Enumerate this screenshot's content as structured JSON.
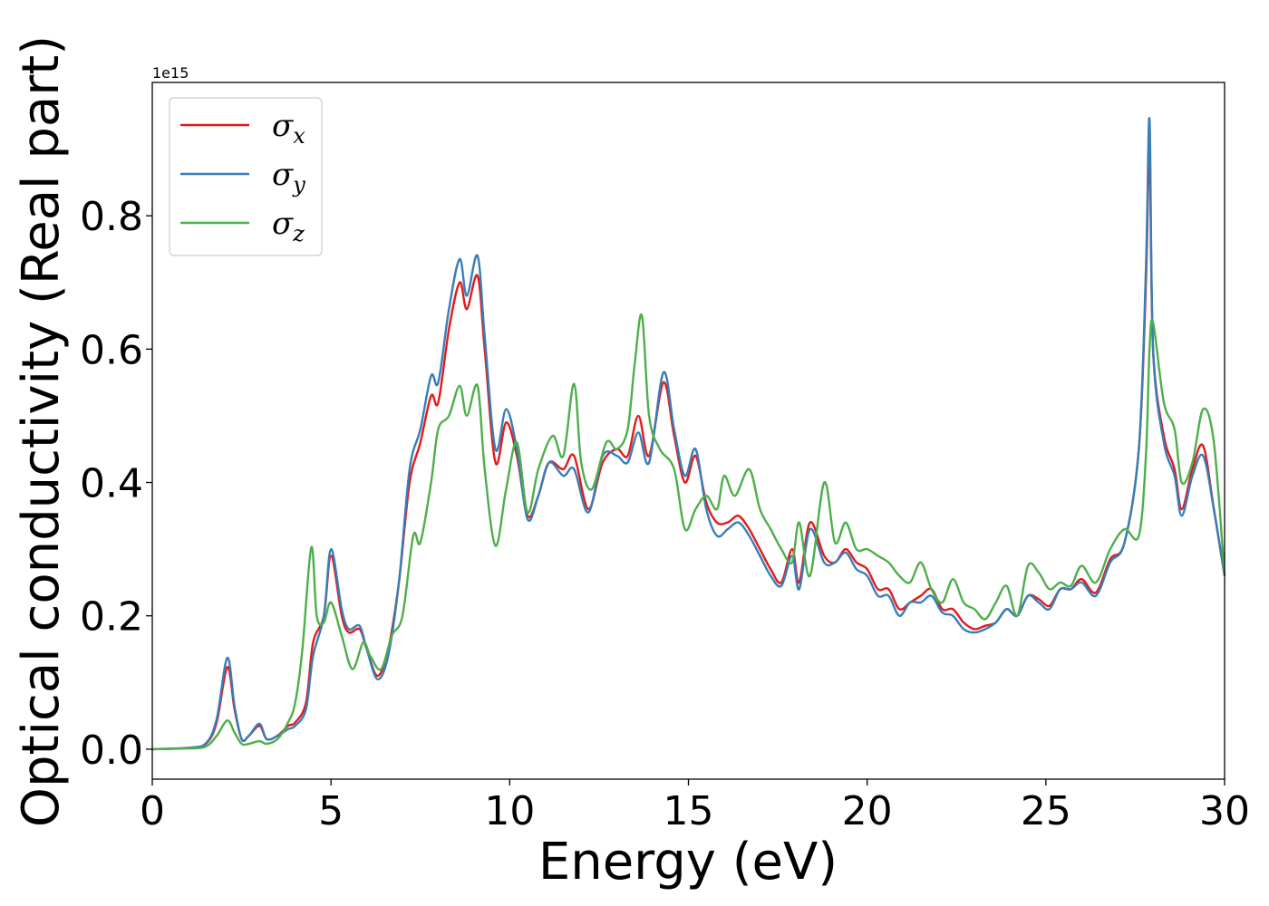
{
  "chart_data": {
    "type": "line",
    "xlabel": "Energy (eV)",
    "ylabel": "Optical conductivity (Real part)",
    "y_offset_label": "1e15",
    "xlim": [
      0,
      30
    ],
    "ylim": [
      -0.045,
      1.0
    ],
    "xticks": [
      0,
      5,
      10,
      15,
      20,
      25,
      30
    ],
    "xtick_labels": [
      "0",
      "5",
      "10",
      "15",
      "20",
      "25",
      "30"
    ],
    "yticks": [
      0.0,
      0.2,
      0.4,
      0.6,
      0.8
    ],
    "ytick_labels": [
      "0.0",
      "0.2",
      "0.4",
      "0.6",
      "0.8"
    ],
    "grid": false,
    "legend_position": "top-left",
    "series": [
      {
        "name": "σ_x",
        "label_main": "σ",
        "label_sub": "x",
        "color": "#e41a1c",
        "x": [
          0,
          1,
          1.5,
          1.8,
          2.1,
          2.3,
          2.5,
          2.7,
          3.0,
          3.2,
          3.5,
          3.8,
          4.0,
          4.3,
          4.5,
          4.8,
          5.0,
          5.3,
          5.5,
          5.8,
          6.0,
          6.3,
          6.6,
          6.9,
          7.2,
          7.5,
          7.8,
          8.0,
          8.3,
          8.6,
          8.8,
          9.1,
          9.3,
          9.6,
          9.9,
          10.2,
          10.5,
          10.8,
          11.1,
          11.5,
          11.8,
          12.2,
          12.6,
          13.0,
          13.3,
          13.6,
          13.9,
          14.3,
          14.6,
          14.9,
          15.2,
          15.5,
          15.8,
          16.1,
          16.4,
          16.7,
          17.0,
          17.3,
          17.6,
          17.9,
          18.1,
          18.4,
          18.8,
          19.1,
          19.4,
          19.7,
          20.0,
          20.3,
          20.6,
          20.9,
          21.2,
          21.5,
          21.8,
          22.1,
          22.4,
          22.7,
          23.0,
          23.3,
          23.6,
          23.9,
          24.2,
          24.5,
          24.8,
          25.1,
          25.4,
          25.7,
          26.0,
          26.4,
          26.8,
          27.2,
          27.6,
          27.8,
          27.9,
          28.0,
          28.3,
          28.6,
          28.8,
          29.1,
          29.4,
          29.7,
          30.0
        ],
        "y": [
          0,
          0.002,
          0.008,
          0.04,
          0.123,
          0.06,
          0.015,
          0.02,
          0.035,
          0.015,
          0.02,
          0.035,
          0.04,
          0.07,
          0.16,
          0.2,
          0.29,
          0.2,
          0.175,
          0.18,
          0.15,
          0.11,
          0.15,
          0.25,
          0.4,
          0.46,
          0.53,
          0.52,
          0.63,
          0.7,
          0.66,
          0.71,
          0.6,
          0.43,
          0.49,
          0.44,
          0.35,
          0.38,
          0.43,
          0.42,
          0.44,
          0.36,
          0.43,
          0.45,
          0.44,
          0.5,
          0.44,
          0.55,
          0.47,
          0.4,
          0.44,
          0.37,
          0.34,
          0.34,
          0.35,
          0.33,
          0.3,
          0.27,
          0.25,
          0.3,
          0.25,
          0.34,
          0.29,
          0.28,
          0.3,
          0.28,
          0.27,
          0.24,
          0.24,
          0.21,
          0.22,
          0.23,
          0.24,
          0.21,
          0.21,
          0.19,
          0.18,
          0.185,
          0.19,
          0.21,
          0.2,
          0.23,
          0.225,
          0.215,
          0.24,
          0.24,
          0.255,
          0.235,
          0.285,
          0.31,
          0.45,
          0.7,
          0.905,
          0.6,
          0.47,
          0.42,
          0.36,
          0.42,
          0.455,
          0.36,
          0.26
        ]
      },
      {
        "name": "σ_y",
        "label_main": "σ",
        "label_sub": "y",
        "color": "#377eb8",
        "x": [
          0,
          1,
          1.5,
          1.8,
          2.1,
          2.3,
          2.5,
          2.7,
          3.0,
          3.2,
          3.5,
          3.8,
          4.0,
          4.3,
          4.5,
          4.8,
          5.0,
          5.3,
          5.5,
          5.8,
          6.0,
          6.3,
          6.6,
          6.9,
          7.2,
          7.5,
          7.8,
          8.0,
          8.3,
          8.6,
          8.8,
          9.1,
          9.3,
          9.6,
          9.9,
          10.2,
          10.5,
          10.8,
          11.1,
          11.5,
          11.8,
          12.2,
          12.6,
          13.0,
          13.3,
          13.6,
          13.9,
          14.3,
          14.6,
          14.9,
          15.2,
          15.5,
          15.8,
          16.1,
          16.4,
          16.7,
          17.0,
          17.3,
          17.6,
          17.9,
          18.1,
          18.4,
          18.8,
          19.1,
          19.4,
          19.7,
          20.0,
          20.3,
          20.6,
          20.9,
          21.2,
          21.5,
          21.8,
          22.1,
          22.4,
          22.7,
          23.0,
          23.3,
          23.6,
          23.9,
          24.2,
          24.5,
          24.8,
          25.1,
          25.4,
          25.7,
          26.0,
          26.4,
          26.8,
          27.2,
          27.6,
          27.8,
          27.9,
          28.0,
          28.3,
          28.6,
          28.8,
          29.1,
          29.4,
          29.7,
          30.0
        ],
        "y": [
          0,
          0.002,
          0.009,
          0.045,
          0.137,
          0.065,
          0.015,
          0.02,
          0.038,
          0.015,
          0.02,
          0.03,
          0.035,
          0.06,
          0.14,
          0.2,
          0.3,
          0.21,
          0.18,
          0.185,
          0.15,
          0.105,
          0.14,
          0.25,
          0.42,
          0.48,
          0.56,
          0.55,
          0.66,
          0.735,
          0.68,
          0.74,
          0.62,
          0.45,
          0.51,
          0.45,
          0.345,
          0.38,
          0.43,
          0.41,
          0.42,
          0.355,
          0.44,
          0.44,
          0.43,
          0.475,
          0.43,
          0.565,
          0.48,
          0.41,
          0.45,
          0.36,
          0.32,
          0.33,
          0.34,
          0.32,
          0.29,
          0.26,
          0.245,
          0.29,
          0.24,
          0.33,
          0.28,
          0.28,
          0.295,
          0.27,
          0.26,
          0.23,
          0.23,
          0.2,
          0.22,
          0.22,
          0.23,
          0.205,
          0.2,
          0.18,
          0.175,
          0.18,
          0.19,
          0.21,
          0.2,
          0.23,
          0.22,
          0.21,
          0.24,
          0.24,
          0.25,
          0.23,
          0.28,
          0.31,
          0.45,
          0.72,
          0.945,
          0.6,
          0.46,
          0.41,
          0.35,
          0.41,
          0.44,
          0.36,
          0.26
        ]
      },
      {
        "name": "σ_z",
        "label_main": "σ",
        "label_sub": "z",
        "color": "#4daf4a",
        "x": [
          0,
          1,
          1.5,
          1.8,
          2.1,
          2.3,
          2.5,
          2.7,
          3.0,
          3.2,
          3.5,
          3.8,
          4.0,
          4.2,
          4.45,
          4.6,
          4.8,
          5.0,
          5.3,
          5.6,
          5.9,
          6.1,
          6.4,
          6.7,
          7.0,
          7.3,
          7.5,
          7.8,
          8.0,
          8.3,
          8.6,
          8.8,
          9.1,
          9.3,
          9.6,
          9.9,
          10.2,
          10.5,
          10.8,
          11.2,
          11.5,
          11.8,
          12.0,
          12.3,
          12.7,
          13.0,
          13.3,
          13.5,
          13.7,
          13.9,
          14.2,
          14.6,
          14.9,
          15.2,
          15.5,
          15.8,
          16.0,
          16.3,
          16.7,
          17.0,
          17.3,
          17.6,
          17.9,
          18.1,
          18.4,
          18.8,
          19.1,
          19.4,
          19.7,
          20.0,
          20.3,
          20.6,
          20.9,
          21.2,
          21.5,
          21.8,
          22.1,
          22.4,
          22.7,
          23.0,
          23.3,
          23.6,
          23.9,
          24.2,
          24.5,
          24.8,
          25.1,
          25.4,
          25.7,
          26.0,
          26.4,
          26.8,
          27.2,
          27.6,
          27.8,
          27.9,
          28.0,
          28.3,
          28.6,
          28.8,
          29.1,
          29.4,
          29.7,
          30.0
        ],
        "y": [
          0,
          0.001,
          0.004,
          0.02,
          0.043,
          0.025,
          0.008,
          0.008,
          0.012,
          0.008,
          0.015,
          0.04,
          0.07,
          0.15,
          0.303,
          0.2,
          0.19,
          0.22,
          0.17,
          0.12,
          0.16,
          0.14,
          0.12,
          0.17,
          0.2,
          0.32,
          0.31,
          0.4,
          0.48,
          0.5,
          0.545,
          0.5,
          0.545,
          0.42,
          0.305,
          0.39,
          0.46,
          0.355,
          0.42,
          0.47,
          0.44,
          0.548,
          0.43,
          0.39,
          0.46,
          0.45,
          0.48,
          0.58,
          0.65,
          0.5,
          0.45,
          0.42,
          0.33,
          0.36,
          0.38,
          0.36,
          0.41,
          0.38,
          0.42,
          0.36,
          0.33,
          0.3,
          0.28,
          0.34,
          0.26,
          0.4,
          0.31,
          0.34,
          0.3,
          0.3,
          0.29,
          0.28,
          0.26,
          0.25,
          0.28,
          0.24,
          0.22,
          0.255,
          0.22,
          0.21,
          0.195,
          0.22,
          0.245,
          0.2,
          0.275,
          0.265,
          0.24,
          0.25,
          0.245,
          0.275,
          0.25,
          0.3,
          0.33,
          0.32,
          0.44,
          0.6,
          0.64,
          0.52,
          0.48,
          0.4,
          0.43,
          0.51,
          0.46,
          0.26
        ]
      }
    ]
  }
}
